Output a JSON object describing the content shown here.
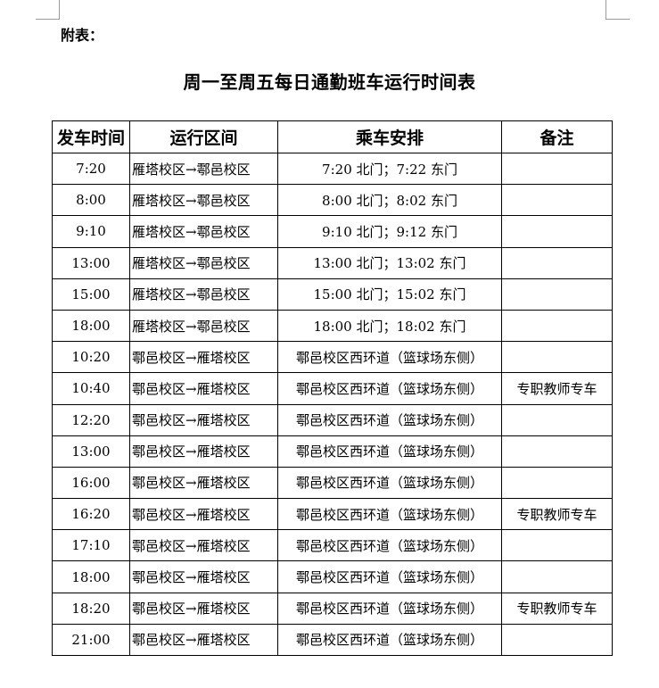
{
  "appendix_label": "附表：",
  "title": "周一至周五每日通勤班车运行时间表",
  "table": {
    "headers": [
      "发车时间",
      "运行区间",
      "乘车安排",
      "备注"
    ],
    "rows": [
      {
        "time": "7:20",
        "route": "雁塔校区→鄠邑校区",
        "arrangement": "7:20 北门；7:22 东门",
        "note": ""
      },
      {
        "time": "8:00",
        "route": "雁塔校区→鄠邑校区",
        "arrangement": "8:00 北门；8:02 东门",
        "note": ""
      },
      {
        "time": "9:10",
        "route": "雁塔校区→鄠邑校区",
        "arrangement": "9:10 北门；9:12 东门",
        "note": ""
      },
      {
        "time": "13:00",
        "route": "雁塔校区→鄠邑校区",
        "arrangement": "13:00 北门；13:02 东门",
        "note": ""
      },
      {
        "time": "15:00",
        "route": "雁塔校区→鄠邑校区",
        "arrangement": "15:00 北门；15:02 东门",
        "note": ""
      },
      {
        "time": "18:00",
        "route": "雁塔校区→鄠邑校区",
        "arrangement": "18:00 北门；18:02 东门",
        "note": ""
      },
      {
        "time": "10:20",
        "route": "鄠邑校区→雁塔校区",
        "arrangement": "鄠邑校区西环道（篮球场东侧）",
        "note": ""
      },
      {
        "time": "10:40",
        "route": "鄠邑校区→雁塔校区",
        "arrangement": "鄠邑校区西环道（篮球场东侧）",
        "note": "专职教师专车"
      },
      {
        "time": "12:20",
        "route": "鄠邑校区→雁塔校区",
        "arrangement": "鄠邑校区西环道（篮球场东侧）",
        "note": ""
      },
      {
        "time": "13:00",
        "route": "鄠邑校区→雁塔校区",
        "arrangement": "鄠邑校区西环道（篮球场东侧）",
        "note": ""
      },
      {
        "time": "16:00",
        "route": "鄠邑校区→雁塔校区",
        "arrangement": "鄠邑校区西环道（篮球场东侧）",
        "note": ""
      },
      {
        "time": "16:20",
        "route": "鄠邑校区→雁塔校区",
        "arrangement": "鄠邑校区西环道（篮球场东侧）",
        "note": "专职教师专车"
      },
      {
        "time": "17:10",
        "route": "鄠邑校区→雁塔校区",
        "arrangement": "鄠邑校区西环道（篮球场东侧）",
        "note": ""
      },
      {
        "time": "18:00",
        "route": "鄠邑校区→雁塔校区",
        "arrangement": "鄠邑校区西环道（篮球场东侧）",
        "note": ""
      },
      {
        "time": "18:20",
        "route": "鄠邑校区→雁塔校区",
        "arrangement": "鄠邑校区西环道（篮球场东侧）",
        "note": "专职教师专车"
      },
      {
        "time": "21:00",
        "route": "鄠邑校区→雁塔校区",
        "arrangement": "鄠邑校区西环道（篮球场东侧）",
        "note": ""
      }
    ]
  }
}
